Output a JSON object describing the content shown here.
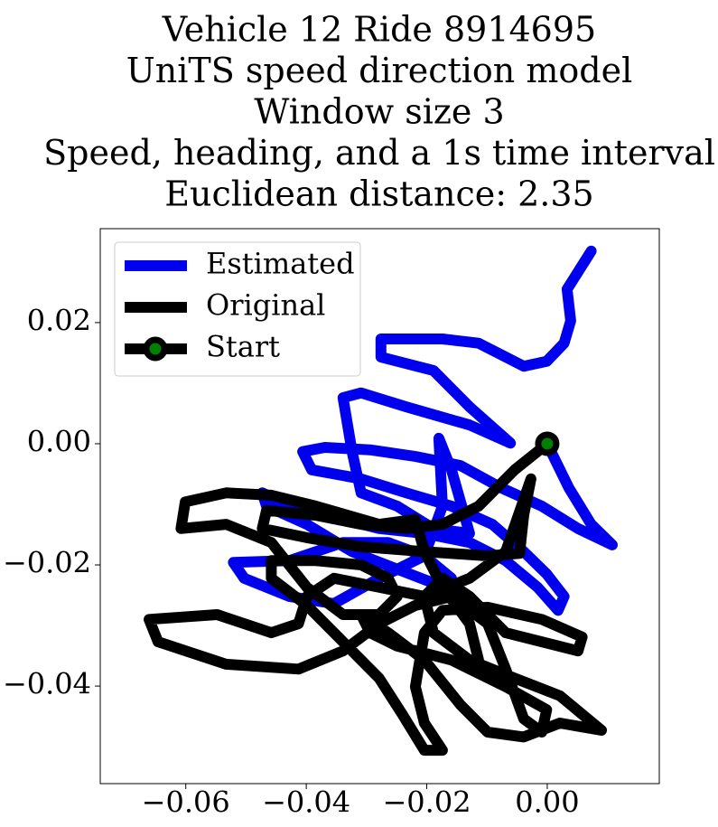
{
  "chart_data": {
    "type": "line",
    "title": [
      "Vehicle 12 Ride 8914695",
      "UniTS speed direction model",
      "Window size 3",
      "Speed, heading, and a 1s time interval",
      "Euclidean distance: 2.35"
    ],
    "xlim": [
      -0.0742,
      0.0186
    ],
    "ylim": [
      -0.0561,
      0.0355
    ],
    "xticks": [
      {
        "value": -0.06,
        "label": "−0.06"
      },
      {
        "value": -0.04,
        "label": "−0.04"
      },
      {
        "value": -0.02,
        "label": "−0.02"
      },
      {
        "value": 0,
        "label": "0.00"
      }
    ],
    "yticks": [
      {
        "value": -0.04,
        "label": "−0.04"
      },
      {
        "value": -0.02,
        "label": "−0.02"
      },
      {
        "value": 0,
        "label": "0.00"
      },
      {
        "value": 0.02,
        "label": "0.02"
      }
    ],
    "legend": "upper left",
    "series": [
      {
        "name": "Estimated",
        "color": "#0000ee",
        "x": [
          0,
          0.0036,
          0.0073,
          0.0108,
          0.0051,
          -0.0009,
          -0.0076,
          -0.0144,
          -0.0219,
          -0.0294,
          -0.0369,
          -0.0406,
          -0.0391,
          -0.0309,
          -0.0234,
          -0.0159,
          -0.0091,
          -0.0039,
          -0.0001,
          0.0028,
          0.0018,
          -0.0016,
          -0.0069,
          -0.0129,
          -0.0204,
          -0.0279,
          -0.0339,
          -0.0413,
          -0.0473,
          -0.0466,
          -0.0399,
          -0.0324,
          -0.0249,
          -0.0189,
          -0.0159,
          -0.0204,
          -0.0264,
          -0.0339,
          -0.0428,
          -0.0521,
          -0.0503,
          -0.0428,
          -0.0354,
          -0.0279,
          -0.0204,
          -0.0174,
          -0.018,
          -0.0159,
          -0.0129,
          -0.0189,
          -0.0249,
          -0.0309,
          -0.0324,
          -0.0339,
          -0.0309,
          -0.0234,
          -0.0129,
          -0.0061,
          -0.0129,
          -0.0189,
          -0.0276,
          -0.0276,
          -0.0174,
          -0.0114,
          -0.0039,
          -0.0001,
          0.0028,
          0.0039,
          0.0033,
          0.0073
        ],
        "y": [
          0,
          -0.0073,
          -0.0133,
          -0.0167,
          -0.014,
          -0.0103,
          -0.0073,
          -0.0036,
          -0.0021,
          -0.001,
          -0.0006,
          -0.0013,
          -0.0043,
          -0.0058,
          -0.0081,
          -0.0103,
          -0.0133,
          -0.0178,
          -0.0215,
          -0.0252,
          -0.0275,
          -0.0237,
          -0.0193,
          -0.0163,
          -0.0148,
          -0.014,
          -0.0125,
          -0.011,
          -0.0081,
          -0.0103,
          -0.0133,
          -0.0178,
          -0.0207,
          -0.023,
          -0.0222,
          -0.0185,
          -0.0163,
          -0.0163,
          -0.0193,
          -0.0196,
          -0.0222,
          -0.0252,
          -0.0264,
          -0.0222,
          -0.0185,
          -0.0103,
          0.0009,
          -0.0043,
          -0.0148,
          -0.014,
          -0.0103,
          -0.0081,
          -0.0013,
          0.0076,
          0.0084,
          0.0061,
          0.0031,
          0.0001,
          0.0061,
          0.0121,
          0.0143,
          0.0173,
          0.0173,
          0.0166,
          0.0128,
          0.0136,
          0.0166,
          0.0203,
          0.0255,
          0.0318
        ]
      },
      {
        "name": "Original",
        "color": "#000000",
        "x": [
          0,
          -0.0054,
          -0.0114,
          -0.0174,
          -0.0234,
          -0.0309,
          -0.0384,
          -0.0466,
          -0.0473,
          -0.0399,
          -0.0309,
          -0.0204,
          -0.0099,
          -0.0046,
          -0.0039,
          -0.0027,
          -0.0069,
          -0.0129,
          -0.0204,
          -0.0279,
          -0.0354,
          -0.0399,
          -0.0413,
          -0.0458,
          -0.0548,
          -0.0661,
          -0.0646,
          -0.0533,
          -0.0413,
          -0.0339,
          -0.0279,
          -0.0219,
          -0.0159,
          -0.0099,
          -0.0069,
          -0.0039,
          -0.0009,
          -0.0001,
          -0.0069,
          -0.0159,
          -0.0249,
          -0.0294,
          -0.0309,
          -0.0264,
          -0.0204,
          -0.0144,
          -0.0099,
          -0.0039,
          0.0021,
          0.009,
          0.0021,
          -0.0054,
          -0.0129,
          -0.0189,
          -0.0204,
          -0.0174,
          -0.0129,
          -0.0069,
          0.0051,
          0.0058,
          -0.0009,
          -0.0099,
          -0.0174,
          -0.0204,
          -0.0219,
          -0.0204,
          -0.0174,
          -0.0204,
          -0.0241,
          -0.0279,
          -0.0339,
          -0.0399,
          -0.0458,
          -0.0458,
          -0.0384,
          -0.0309,
          -0.0264,
          -0.0249,
          -0.0279,
          -0.0339,
          -0.0399,
          -0.0458,
          -0.0533,
          -0.0608,
          -0.0601,
          -0.0533,
          -0.0458,
          -0.0384,
          -0.0279,
          -0.0219,
          -0.0204,
          -0.0174,
          -0.0129,
          -0.0114
        ],
        "y": [
          0,
          -0.0043,
          -0.0103,
          -0.0133,
          -0.014,
          -0.0133,
          -0.0118,
          -0.011,
          -0.014,
          -0.0155,
          -0.017,
          -0.0178,
          -0.0185,
          -0.0181,
          -0.0118,
          -0.0058,
          -0.0178,
          -0.0222,
          -0.0252,
          -0.0237,
          -0.0222,
          -0.0252,
          -0.0297,
          -0.0312,
          -0.0282,
          -0.029,
          -0.0327,
          -0.0364,
          -0.0372,
          -0.0342,
          -0.0297,
          -0.0267,
          -0.0252,
          -0.0297,
          -0.0372,
          -0.0454,
          -0.0476,
          -0.0439,
          -0.0401,
          -0.0357,
          -0.0334,
          -0.0312,
          -0.0282,
          -0.0312,
          -0.0357,
          -0.0431,
          -0.0476,
          -0.0484,
          -0.0461,
          -0.0473,
          -0.0416,
          -0.0387,
          -0.0357,
          -0.0312,
          -0.0252,
          -0.0222,
          -0.0252,
          -0.0312,
          -0.0342,
          -0.0319,
          -0.029,
          -0.027,
          -0.0275,
          -0.0312,
          -0.0401,
          -0.0461,
          -0.0506,
          -0.0506,
          -0.0446,
          -0.0387,
          -0.0327,
          -0.0267,
          -0.0222,
          -0.0193,
          -0.0193,
          -0.02,
          -0.0222,
          -0.0252,
          -0.0282,
          -0.0282,
          -0.0237,
          -0.0163,
          -0.0133,
          -0.014,
          -0.0096,
          -0.0081,
          -0.0085,
          -0.0103,
          -0.0133,
          -0.0125,
          -0.0178,
          -0.0237,
          -0.0297,
          -0.0357
        ]
      },
      {
        "name": "Start",
        "color": "#000000",
        "marker_color": "#008000",
        "x": [
          0
        ],
        "y": [
          0
        ]
      }
    ]
  }
}
